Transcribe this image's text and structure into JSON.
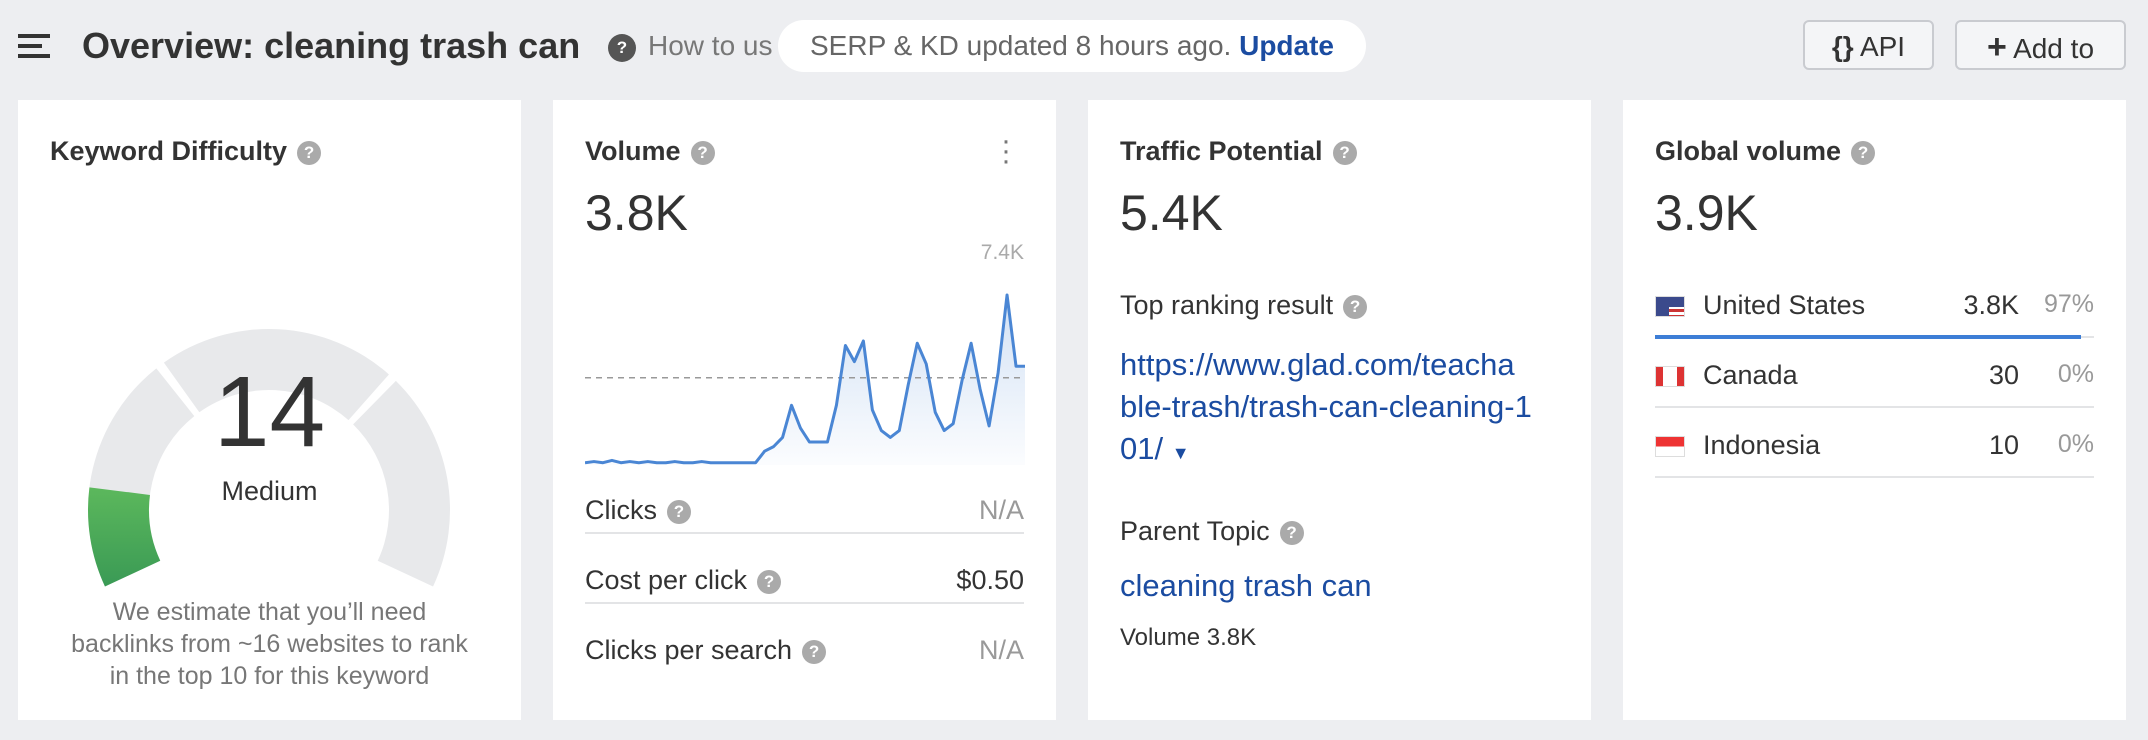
{
  "header": {
    "title": "Overview: cleaning trash can",
    "help": "How to us",
    "status": "SERP & KD updated 8 hours ago.",
    "update": "Update",
    "api": "API",
    "add": "Add to"
  },
  "cards": {
    "kd": {
      "title": "Keyword Difficulty",
      "value": 14,
      "scale": [
        0,
        100
      ],
      "label": "Medium",
      "note": [
        "We estimate that you’ll need",
        "backlinks from ~16 websites to rank",
        "in the top 10 for this keyword"
      ]
    },
    "volume": {
      "title": "Volume",
      "value": "3.8K",
      "trend": {
        "values": [
          100,
          150,
          100,
          200,
          100,
          150,
          100,
          150,
          100,
          100,
          150,
          100,
          100,
          150,
          100,
          100,
          100,
          100,
          100,
          100,
          600,
          800,
          1200,
          2600,
          1600,
          1000,
          1000,
          1000,
          2600,
          5200,
          4500,
          5400,
          2400,
          1500,
          1200,
          1500,
          3500,
          5300,
          4400,
          2300,
          1500,
          1800,
          3700,
          5300,
          3300,
          1700,
          4000,
          7400,
          4300,
          4300
        ],
        "max": 7400,
        "max_label": "7.4K",
        "reference": 3800
      },
      "rows": [
        {
          "label": "Clicks",
          "value": "N/A"
        },
        {
          "label": "Cost per click",
          "value": "$0.50"
        },
        {
          "label": "Clicks per search",
          "value": "N/A"
        }
      ]
    },
    "traffic": {
      "title": "Traffic Potential",
      "value": "5.4K",
      "top_label": "Top ranking result",
      "url_lines": [
        "https://www.glad.com/teacha",
        "ble-trash/trash-can-cleaning-1",
        "01/"
      ],
      "parent_label": "Parent Topic",
      "parent": "cleaning trash can",
      "parent_volume": "Volume 3.8K"
    },
    "global": {
      "title": "Global volume",
      "value": "3.9K",
      "countries": [
        {
          "name": "United States",
          "value": "3.8K",
          "share": {
            "value": 97,
            "label": "97%"
          }
        },
        {
          "name": "Canada",
          "value": "30",
          "share": {
            "value": 0,
            "label": "0%"
          }
        },
        {
          "name": "Indonesia",
          "value": "10",
          "share": {
            "value": 0,
            "label": "0%"
          }
        }
      ]
    }
  }
}
